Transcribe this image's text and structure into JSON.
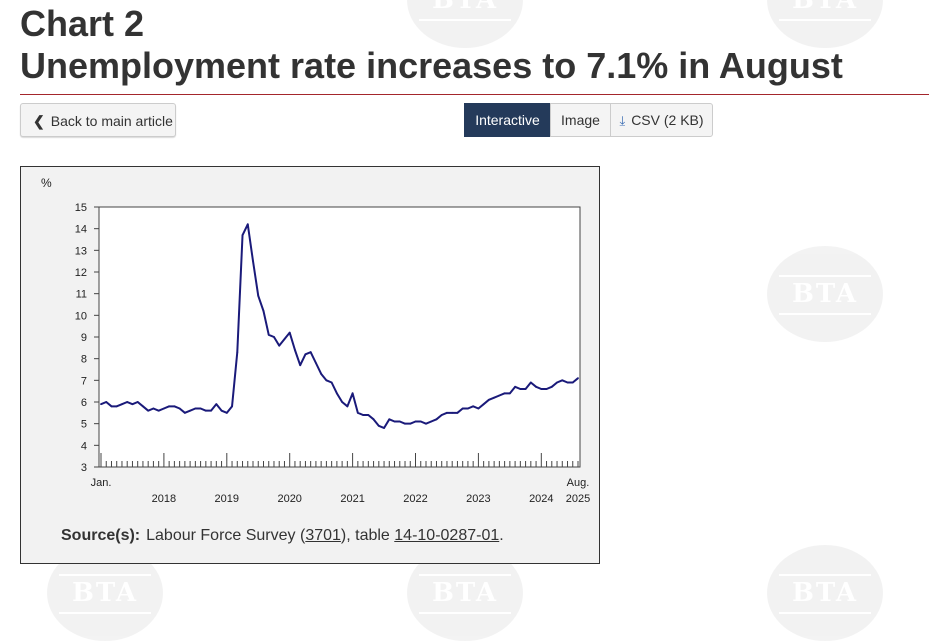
{
  "header": {
    "chart_number": "Chart 2",
    "title": "Unemployment rate increases to 7.1% in August"
  },
  "nav": {
    "back_label": "Back to main article"
  },
  "view_tabs": [
    "Interactive",
    "Image",
    "CSV (2 KB)"
  ],
  "watermark": "BTA",
  "source": {
    "label": "Source(s):",
    "text1": "Labour Force Survey (",
    "link1": "3701",
    "text2": "), table ",
    "link2": "14-10-0287-01",
    "text3": "."
  },
  "chart_data": {
    "type": "line",
    "ylabel": "%",
    "ylim": [
      3,
      15
    ],
    "yticks": [
      3,
      4,
      5,
      6,
      7,
      8,
      9,
      10,
      11,
      12,
      13,
      14,
      15
    ],
    "x_start_label": "Jan.",
    "x_end_label": "Aug.",
    "year_labels": [
      "2018",
      "2019",
      "2020",
      "2021",
      "2022",
      "2023",
      "2024",
      "2025"
    ],
    "start": "2017-01",
    "series": [
      {
        "values": [
          5.9,
          6.0,
          5.8,
          5.8,
          5.9,
          6.0,
          5.9,
          6.0,
          5.8,
          5.6,
          5.7,
          5.6,
          5.7,
          5.8,
          5.8,
          5.7,
          5.5,
          5.6,
          5.7,
          5.7,
          5.6,
          5.6,
          5.9,
          5.6,
          5.5,
          5.8,
          8.3,
          13.7,
          14.2,
          12.5,
          10.9,
          10.2,
          9.1,
          9.0,
          8.6,
          8.9,
          9.2,
          8.4,
          7.7,
          8.2,
          8.3,
          7.8,
          7.3,
          7.0,
          6.9,
          6.4,
          6.0,
          5.8,
          6.4,
          5.5,
          5.4,
          5.4,
          5.2,
          4.9,
          4.8,
          5.2,
          5.1,
          5.1,
          5.0,
          5.0,
          5.1,
          5.1,
          5.0,
          5.1,
          5.2,
          5.4,
          5.5,
          5.5,
          5.5,
          5.7,
          5.7,
          5.8,
          5.7,
          5.9,
          6.1,
          6.2,
          6.3,
          6.4,
          6.4,
          6.7,
          6.6,
          6.6,
          6.9,
          6.7,
          6.6,
          6.6,
          6.7,
          6.9,
          7.0,
          6.9,
          6.9,
          7.1
        ]
      }
    ]
  }
}
